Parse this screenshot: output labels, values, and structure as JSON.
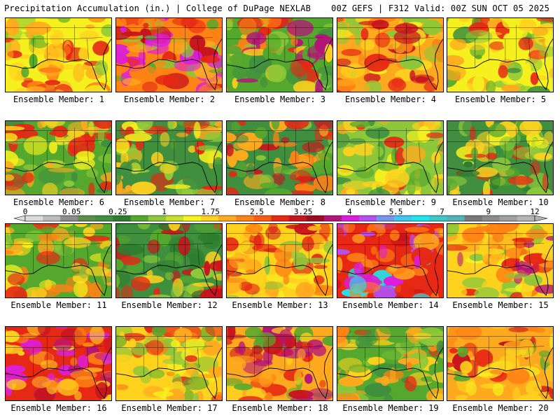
{
  "header": {
    "left": "Precipitation Accumulation (in.) | College of DuPage NEXLAB",
    "right": "00Z GEFS | F312 Valid: 00Z SUN OCT 05 2025"
  },
  "colorbar": {
    "tick_labels": [
      "0",
      "0.05",
      "0.25",
      "1",
      "1.75",
      "2.5",
      "3.25",
      "4",
      "5.5",
      "7",
      "9",
      "12"
    ],
    "colors": [
      "#dcdcdc",
      "#bdbdbd",
      "#8c8c8c",
      "#5a8f4a",
      "#3f8f3f",
      "#2e7d2e",
      "#55a82e",
      "#8cc83a",
      "#c8e02a",
      "#f5f51e",
      "#ffd21e",
      "#ffaa1e",
      "#ff8214",
      "#ff5a14",
      "#e62814",
      "#c8141e",
      "#a00a1e",
      "#b4147a",
      "#dc1edc",
      "#b450f0",
      "#7896f0",
      "#3cc8f0",
      "#1ee6f0",
      "#3cc8c8",
      "#50b4b4",
      "#787878",
      "#8c8c8c",
      "#a0a0a0",
      "#b4b4b4"
    ]
  },
  "panels": [
    {
      "label": "Ensemble Member: 1",
      "palette": [
        "#f5f01e",
        "#ffd21e",
        "#ffaa1e",
        "#8cc83a",
        "#55a82e",
        "#ff8214",
        "#e62814"
      ]
    },
    {
      "label": "Ensemble Member: 2",
      "palette": [
        "#ff8214",
        "#ffaa1e",
        "#8cc83a",
        "#55a82e",
        "#e62814",
        "#dc1edc",
        "#c8141e"
      ]
    },
    {
      "label": "Ensemble Member: 3",
      "palette": [
        "#55a82e",
        "#3f8f3f",
        "#8cc83a",
        "#ffd21e",
        "#ff8214",
        "#e62814",
        "#b4147a"
      ]
    },
    {
      "label": "Ensemble Member: 4",
      "palette": [
        "#ffaa1e",
        "#ff8214",
        "#ffd21e",
        "#e62814",
        "#8cc83a",
        "#c8141e",
        "#f5f01e"
      ]
    },
    {
      "label": "Ensemble Member: 5",
      "palette": [
        "#f5f01e",
        "#ffd21e",
        "#8cc83a",
        "#55a82e",
        "#ffaa1e",
        "#e62814",
        "#3f8f3f"
      ]
    },
    {
      "label": "Ensemble Member: 6",
      "palette": [
        "#55a82e",
        "#8cc83a",
        "#3f8f3f",
        "#ffd21e",
        "#ffaa1e",
        "#e62814",
        "#f5f01e"
      ]
    },
    {
      "label": "Ensemble Member: 7",
      "palette": [
        "#3f8f3f",
        "#55a82e",
        "#8cc83a",
        "#f5f01e",
        "#ffd21e",
        "#ffaa1e",
        "#e62814"
      ]
    },
    {
      "label": "Ensemble Member: 8",
      "palette": [
        "#3f8f3f",
        "#55a82e",
        "#ffaa1e",
        "#ff8214",
        "#e62814",
        "#c8141e",
        "#8cc83a"
      ]
    },
    {
      "label": "Ensemble Member: 9",
      "palette": [
        "#8cc83a",
        "#55a82e",
        "#f5f01e",
        "#ffd21e",
        "#ffaa1e",
        "#3f8f3f",
        "#e62814"
      ]
    },
    {
      "label": "Ensemble Member: 10",
      "palette": [
        "#3f8f3f",
        "#55a82e",
        "#2e7d2e",
        "#8cc83a",
        "#f5f01e",
        "#ffd21e",
        "#e62814"
      ]
    },
    {
      "label": "Ensemble Member: 11",
      "palette": [
        "#55a82e",
        "#8cc83a",
        "#ffd21e",
        "#ffaa1e",
        "#ff8214",
        "#e62814",
        "#f5f01e"
      ]
    },
    {
      "label": "Ensemble Member: 12",
      "palette": [
        "#3f8f3f",
        "#2e7d2e",
        "#55a82e",
        "#8cc83a",
        "#ffd21e",
        "#e62814",
        "#c8141e"
      ]
    },
    {
      "label": "Ensemble Member: 13",
      "palette": [
        "#ffd21e",
        "#ffaa1e",
        "#ff8214",
        "#e62814",
        "#f5f01e",
        "#c8141e",
        "#8cc83a"
      ]
    },
    {
      "label": "Ensemble Member: 14",
      "palette": [
        "#e62814",
        "#dc1edc",
        "#b450f0",
        "#c8141e",
        "#1ee6f0",
        "#ffaa1e",
        "#ff8214"
      ]
    },
    {
      "label": "Ensemble Member: 15",
      "palette": [
        "#ffd21e",
        "#ffaa1e",
        "#ff8214",
        "#e62814",
        "#f5f01e",
        "#b4147a",
        "#8cc83a"
      ]
    },
    {
      "label": "Ensemble Member: 16",
      "palette": [
        "#e62814",
        "#ff8214",
        "#c8141e",
        "#ffaa1e",
        "#b4147a",
        "#dc1edc",
        "#ffd21e"
      ]
    },
    {
      "label": "Ensemble Member: 17",
      "palette": [
        "#ffd21e",
        "#ffaa1e",
        "#8cc83a",
        "#55a82e",
        "#ff8214",
        "#e62814",
        "#f5f01e"
      ]
    },
    {
      "label": "Ensemble Member: 18",
      "palette": [
        "#ffaa1e",
        "#ff8214",
        "#e62814",
        "#ffd21e",
        "#c8141e",
        "#55a82e",
        "#b4147a"
      ]
    },
    {
      "label": "Ensemble Member: 19",
      "palette": [
        "#55a82e",
        "#8cc83a",
        "#3f8f3f",
        "#ffd21e",
        "#ffaa1e",
        "#ff8214",
        "#e62814"
      ]
    },
    {
      "label": "Ensemble Member: 20",
      "palette": [
        "#ffaa1e",
        "#ff8214",
        "#ffd21e",
        "#e62814",
        "#c8141e",
        "#f5f01e",
        "#55a82e"
      ]
    }
  ]
}
